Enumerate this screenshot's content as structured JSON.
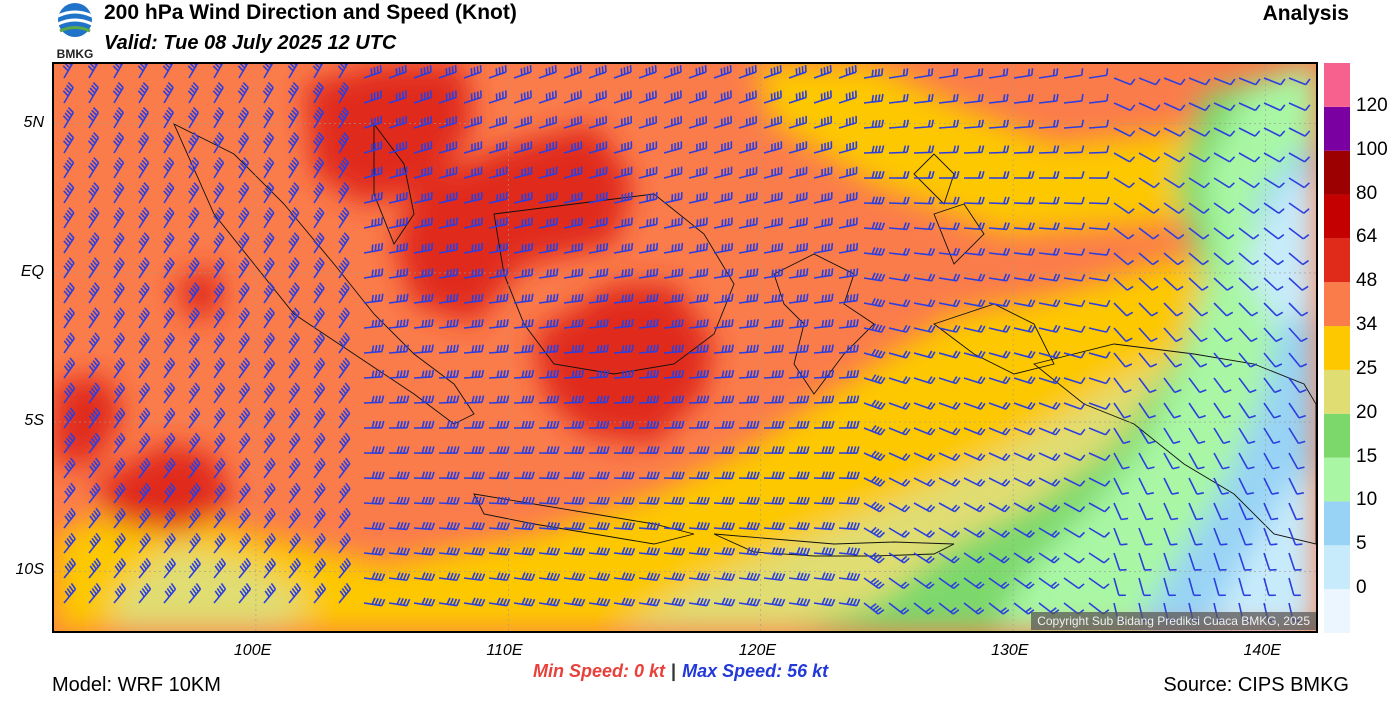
{
  "header": {
    "logo_text": "BMKG",
    "title": "200 hPa Wind Direction and Speed (Knot)",
    "valid": "Valid: Tue 08 July 2025 12 UTC",
    "analysis": "Analysis"
  },
  "axes": {
    "lat_labels": [
      {
        "label": "5N",
        "value": 5
      },
      {
        "label": "EQ",
        "value": 0
      },
      {
        "label": "5S",
        "value": -5
      },
      {
        "label": "10S",
        "value": -10
      }
    ],
    "lon_labels": [
      {
        "label": "100E",
        "value": 100
      },
      {
        "label": "110E",
        "value": 110
      },
      {
        "label": "120E",
        "value": 120
      },
      {
        "label": "130E",
        "value": 130
      },
      {
        "label": "140E",
        "value": 140
      }
    ],
    "lon_range": [
      92,
      142
    ],
    "lat_range": [
      -12,
      7
    ]
  },
  "legend": {
    "units": "kt",
    "bins": [
      {
        "label": "0",
        "color": "#ecf6ff"
      },
      {
        "label": "5",
        "color": "#c8ebfb"
      },
      {
        "label": "10",
        "color": "#98d3f5"
      },
      {
        "label": "15",
        "color": "#a9f7a4"
      },
      {
        "label": "20",
        "color": "#7dd86c"
      },
      {
        "label": "25",
        "color": "#e0dd72"
      },
      {
        "label": "34",
        "color": "#fdc800"
      },
      {
        "label": "48",
        "color": "#fb7c4b"
      },
      {
        "label": "64",
        "color": "#e02b1a"
      },
      {
        "label": "80",
        "color": "#c40000"
      },
      {
        "label": "100",
        "color": "#9d0000"
      },
      {
        "label": "120",
        "color": "#7a00a1"
      },
      {
        "label": "",
        "color": "#f7618d"
      }
    ]
  },
  "stats": {
    "min_text": "Min Speed:   0 kt",
    "separator": "|",
    "max_text": "Max Speed:  56 kt"
  },
  "footer": {
    "model": "Model: WRF 10KM",
    "source": "Source: CIPS BMKG",
    "copyright": "Copyright Sub Bidang Prediksi Cuaca BMKG, 2025"
  },
  "colors": {
    "barb": "#2b3fe0",
    "coast": "#111111"
  }
}
